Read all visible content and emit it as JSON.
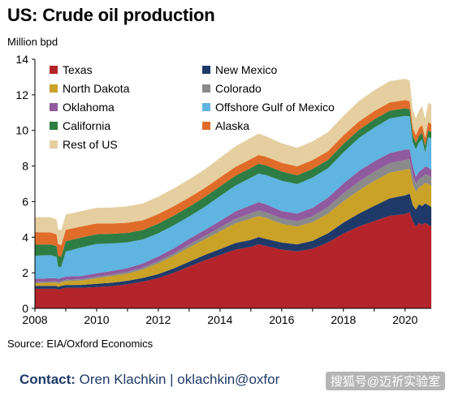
{
  "header": {
    "title": "US: Crude oil production",
    "units": "Million bpd"
  },
  "footer": {
    "source": "Source: EIA/Oxford Economics",
    "contact_label": "Contact:",
    "contact_text": " Oren Klachkin | oklachkin@oxfor",
    "watermark": "搜狐号@迈祈实验室"
  },
  "colors": {
    "Texas": "#b3242b",
    "New Mexico": "#1f3a68",
    "North Dakota": "#c9a227",
    "Colorado": "#8a8a8a",
    "Oklahoma": "#8f5a9e",
    "Offshore Gulf of Mexico": "#5fb4e0",
    "California": "#2e7d44",
    "Alaska": "#e06c2a",
    "Rest of US": "#e5cfa0"
  },
  "chart_data": {
    "type": "area",
    "stacked": true,
    "title": "US: Crude oil production",
    "ylabel": "Million bpd",
    "xlabel": "",
    "xlim": [
      2008,
      2020.85
    ],
    "ylim": [
      0,
      14
    ],
    "yticks": [
      0,
      2,
      4,
      6,
      8,
      10,
      12,
      14
    ],
    "xticks": [
      2008,
      2010,
      2012,
      2014,
      2016,
      2018,
      2020
    ],
    "grid": false,
    "legend_position": "top-left",
    "x": [
      2008,
      2008.5,
      2008.7,
      2008.75,
      2008.85,
      2009,
      2009.5,
      2010,
      2010.5,
      2011,
      2011.5,
      2012,
      2012.5,
      2013,
      2013.5,
      2014,
      2014.5,
      2015,
      2015.25,
      2015.5,
      2016,
      2016.5,
      2017,
      2017.5,
      2018,
      2018.5,
      2019,
      2019.5,
      2020,
      2020.15,
      2020.25,
      2020.35,
      2020.45,
      2020.55,
      2020.65,
      2020.75,
      2020.85
    ],
    "series": [
      {
        "name": "Texas",
        "values": [
          1.1,
          1.1,
          1.1,
          1.05,
          1.1,
          1.15,
          1.15,
          1.2,
          1.25,
          1.35,
          1.5,
          1.7,
          2.0,
          2.35,
          2.7,
          3.0,
          3.3,
          3.45,
          3.6,
          3.5,
          3.3,
          3.2,
          3.35,
          3.7,
          4.2,
          4.6,
          4.9,
          5.2,
          5.3,
          5.4,
          4.9,
          4.6,
          4.8,
          4.7,
          4.8,
          4.7,
          4.6
        ]
      },
      {
        "name": "New Mexico",
        "values": [
          0.16,
          0.16,
          0.16,
          0.16,
          0.16,
          0.16,
          0.17,
          0.18,
          0.19,
          0.2,
          0.21,
          0.23,
          0.25,
          0.27,
          0.3,
          0.33,
          0.37,
          0.4,
          0.41,
          0.4,
          0.4,
          0.4,
          0.45,
          0.52,
          0.62,
          0.72,
          0.86,
          0.98,
          1.05,
          1.05,
          0.9,
          0.95,
          1.05,
          1.05,
          1.1,
          1.1,
          1.1
        ]
      },
      {
        "name": "North Dakota",
        "values": [
          0.15,
          0.18,
          0.19,
          0.19,
          0.2,
          0.22,
          0.24,
          0.31,
          0.37,
          0.4,
          0.48,
          0.6,
          0.7,
          0.8,
          0.87,
          1.0,
          1.1,
          1.2,
          1.17,
          1.18,
          1.05,
          1.0,
          1.05,
          1.1,
          1.2,
          1.3,
          1.4,
          1.45,
          1.44,
          1.4,
          1.2,
          1.0,
          0.95,
          1.15,
          1.15,
          1.2,
          1.18
        ]
      },
      {
        "name": "Colorado",
        "values": [
          0.07,
          0.07,
          0.07,
          0.07,
          0.07,
          0.08,
          0.08,
          0.09,
          0.09,
          0.1,
          0.11,
          0.13,
          0.14,
          0.17,
          0.19,
          0.22,
          0.26,
          0.3,
          0.33,
          0.31,
          0.3,
          0.3,
          0.33,
          0.38,
          0.44,
          0.5,
          0.52,
          0.53,
          0.55,
          0.54,
          0.48,
          0.46,
          0.47,
          0.47,
          0.48,
          0.48,
          0.47
        ]
      },
      {
        "name": "Oklahoma",
        "values": [
          0.18,
          0.18,
          0.18,
          0.18,
          0.18,
          0.18,
          0.18,
          0.19,
          0.2,
          0.21,
          0.22,
          0.26,
          0.28,
          0.32,
          0.34,
          0.36,
          0.42,
          0.44,
          0.46,
          0.45,
          0.42,
          0.43,
          0.47,
          0.52,
          0.56,
          0.6,
          0.58,
          0.56,
          0.58,
          0.55,
          0.5,
          0.38,
          0.4,
          0.43,
          0.44,
          0.44,
          0.44
        ]
      },
      {
        "name": "Offshore Gulf of Mexico",
        "values": [
          1.3,
          1.3,
          1.2,
          0.7,
          0.6,
          1.4,
          1.6,
          1.65,
          1.55,
          1.45,
          1.35,
          1.3,
          1.3,
          1.25,
          1.3,
          1.4,
          1.45,
          1.55,
          1.6,
          1.65,
          1.7,
          1.65,
          1.7,
          1.65,
          1.75,
          1.85,
          1.9,
          1.95,
          1.9,
          1.85,
          1.35,
          1.55,
          1.65,
          1.7,
          0.8,
          1.7,
          1.75
        ]
      },
      {
        "name": "California",
        "values": [
          0.62,
          0.6,
          0.6,
          0.6,
          0.6,
          0.58,
          0.56,
          0.55,
          0.54,
          0.53,
          0.53,
          0.54,
          0.54,
          0.55,
          0.55,
          0.55,
          0.55,
          0.55,
          0.55,
          0.54,
          0.52,
          0.5,
          0.48,
          0.47,
          0.47,
          0.46,
          0.45,
          0.44,
          0.42,
          0.4,
          0.38,
          0.36,
          0.37,
          0.38,
          0.38,
          0.38,
          0.38
        ]
      },
      {
        "name": "Alaska",
        "values": [
          0.7,
          0.68,
          0.66,
          0.66,
          0.64,
          0.65,
          0.62,
          0.6,
          0.58,
          0.57,
          0.55,
          0.54,
          0.53,
          0.52,
          0.51,
          0.5,
          0.5,
          0.5,
          0.5,
          0.49,
          0.49,
          0.5,
          0.5,
          0.49,
          0.48,
          0.47,
          0.47,
          0.46,
          0.46,
          0.45,
          0.44,
          0.43,
          0.43,
          0.44,
          0.44,
          0.45,
          0.45
        ]
      },
      {
        "name": "Rest of US",
        "values": [
          0.85,
          0.85,
          0.84,
          0.84,
          0.83,
          0.85,
          0.86,
          0.88,
          0.9,
          0.92,
          0.95,
          0.98,
          1.0,
          1.02,
          1.05,
          1.1,
          1.15,
          1.2,
          1.2,
          1.15,
          1.1,
          1.05,
          1.05,
          1.08,
          1.1,
          1.15,
          1.18,
          1.2,
          1.2,
          1.15,
          1.0,
          0.95,
          1.0,
          1.05,
          1.05,
          1.1,
          1.1
        ]
      }
    ]
  }
}
